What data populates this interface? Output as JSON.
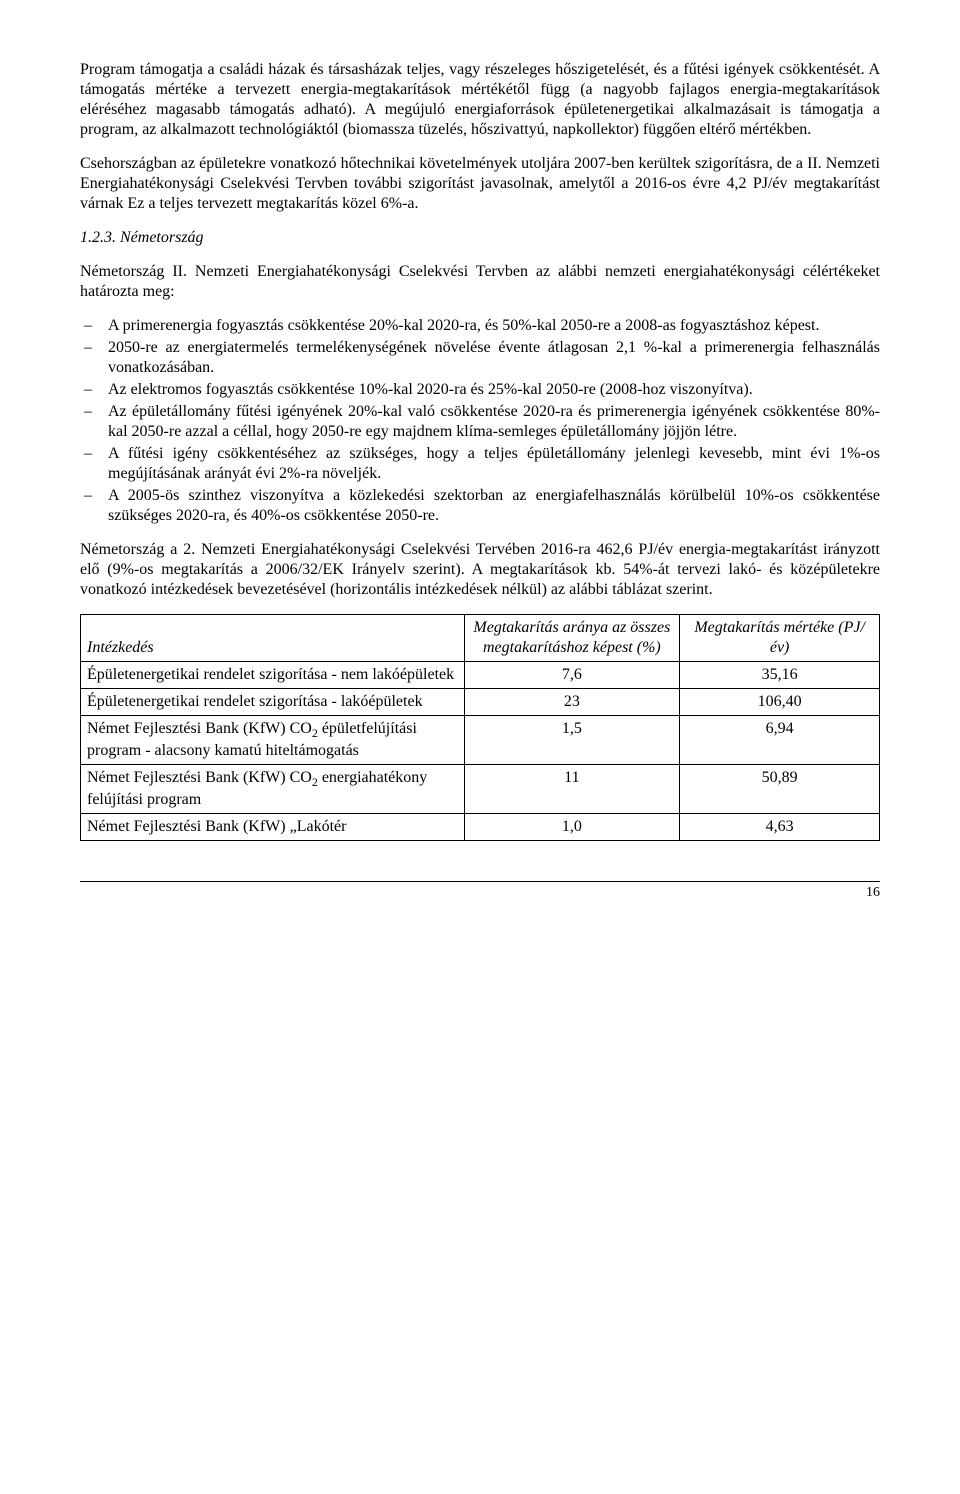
{
  "para1": "Program támogatja a családi házak és társasházak teljes, vagy részeleges hőszigetelését, és a fűtési igények csökkentését. A támogatás mértéke a tervezett energia-megtakarítások mértékétől függ (a nagyobb fajlagos energia-megtakarítások eléréséhez magasabb támogatás adható). A megújuló energiaforrások épületenergetikai alkalmazásait is támogatja a program, az alkalmazott technológiáktól (biomassza tüzelés, hőszivattyú, napkollektor) függően eltérő mértékben.",
  "para2": "Csehországban az épületekre vonatkozó hőtechnikai követelmények utoljára 2007-ben kerültek szigorításra, de a II. Nemzeti Energiahatékonysági Cselekvési Tervben további szigorítást javasolnak, amelytől a 2016-os évre 4,2 PJ/év megtakarítást várnak Ez a teljes tervezett megtakarítás közel 6%-a.",
  "sectionNum": "1.2.3. Németország",
  "para3": "Németország II. Nemzeti Energiahatékonysági Cselekvési Tervben az alábbi nemzeti energiahatékonysági célértékeket határozta meg:",
  "bullets": [
    "A primerenergia fogyasztás csökkentése 20%-kal 2020-ra, és 50%-kal 2050-re a 2008-as fogyasztáshoz képest.",
    "2050-re az energiatermelés termelékenységének növelése évente átlagosan 2,1 %-kal a primerenergia felhasználás vonatkozásában.",
    "Az elektromos fogyasztás csökkentése 10%-kal 2020-ra és 25%-kal 2050-re (2008-hoz viszonyítva).",
    "Az épületállomány fűtési igényének 20%-kal való csökkentése 2020-ra és primerenergia igényének csökkentése 80%-kal 2050-re azzal a céllal, hogy 2050-re egy majdnem klíma-semleges épületállomány jöjjön létre.",
    "A fűtési igény csökkentéséhez az szükséges, hogy a teljes épületállomány jelenlegi kevesebb, mint évi 1%-os megújításának arányát évi 2%-ra növeljék.",
    "A 2005-ös szinthez viszonyítva a közlekedési szektorban az energiafelhasználás körülbelül 10%-os csökkentése szükséges 2020-ra, és 40%-os csökkentése 2050-re."
  ],
  "para4": "Németország a 2. Nemzeti Energiahatékonysági Cselekvési Tervében 2016-ra 462,6 PJ/év energia-megtakarítást irányzott elő (9%-os megtakarítás a 2006/32/EK Irányelv szerint). A megtakarítások kb. 54%-át tervezi lakó- és középületekre vonatkozó intézkedések bevezetésével (horizontális intézkedések nélkül) az alábbi táblázat szerint.",
  "table": {
    "headers": {
      "c1": "Intézkedés",
      "c2": "Megtakarítás aránya az összes megtakarításhoz képest (%)",
      "c3": "Megtakarítás mértéke (PJ/év)"
    },
    "rows": [
      {
        "label": "Épületenergetikai rendelet szigorítása - nem lakóépületek",
        "share": "7,6",
        "amount": "35,16"
      },
      {
        "label": "Épületenergetikai rendelet szigorítása - lakóépületek",
        "share": "23",
        "amount": "106,40"
      },
      {
        "label_html": "Német Fejlesztési Bank (KfW) CO<span class=\"sub\">2</span> épületfelújítási program - alacsony kamatú hiteltámogatás",
        "share": "1,5",
        "amount": "6,94"
      },
      {
        "label_html": "Német Fejlesztési Bank (KfW) CO<span class=\"sub\">2</span> energiahatékony felújítási program",
        "share": "11",
        "amount": "50,89"
      },
      {
        "label": "Német Fejlesztési Bank (KfW) „Lakótér",
        "share": "1,0",
        "amount": "4,63"
      }
    ],
    "colWidths": [
      "48%",
      "27%",
      "25%"
    ]
  },
  "pageNum": "16"
}
